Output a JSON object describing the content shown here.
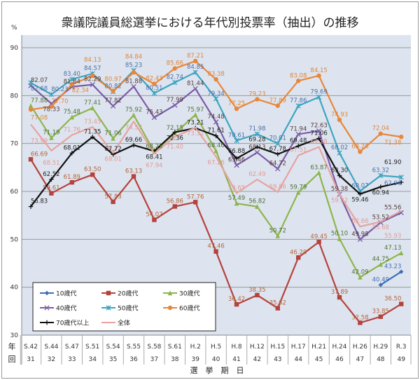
{
  "chart_data": {
    "type": "line",
    "title": "衆議院議員総選挙における年代別投票率（抽出）の推移",
    "ylabel": "%",
    "xlabel": "選　挙　期　日",
    "row_labels": [
      "年",
      "回"
    ],
    "ylim": [
      30,
      90
    ],
    "yticks": [
      30,
      40,
      50,
      60,
      70,
      80,
      90
    ],
    "grid": true,
    "legend_position": "bottom-left",
    "categories": [
      "S.42",
      "S.44",
      "S.47",
      "S.51",
      "S.54",
      "S.55",
      "S.58",
      "S.61",
      "H.2",
      "H.5",
      "H.8",
      "H.12",
      "H.15",
      "H.17",
      "H.21",
      "H.24",
      "H.26",
      "H.29",
      "R.3"
    ],
    "sessions": [
      "31",
      "32",
      "33",
      "34",
      "35",
      "36",
      "37",
      "38",
      "39",
      "40",
      "41",
      "42",
      "43",
      "44",
      "45",
      "46",
      "47",
      "48",
      "49"
    ],
    "series": [
      {
        "name": "10歳代",
        "color": "#3f6fb5",
        "label_color": "#3f6fb5",
        "marker": "diamond",
        "values": [
          null,
          null,
          null,
          null,
          null,
          null,
          null,
          null,
          null,
          null,
          null,
          null,
          null,
          null,
          null,
          null,
          null,
          40.49,
          43.23
        ]
      },
      {
        "name": "20歳代",
        "color": "#b5423c",
        "label_color": "#b5643c",
        "marker": "square",
        "values": [
          66.69,
          59.61,
          61.89,
          63.5,
          57.83,
          63.13,
          54.07,
          56.86,
          57.76,
          47.46,
          36.42,
          38.35,
          35.62,
          46.2,
          49.45,
          37.89,
          32.58,
          33.85,
          36.5
        ]
      },
      {
        "name": "30歳代",
        "color": "#8db54a",
        "label_color": "#4f6f3a",
        "marker": "triangle",
        "values": [
          77.88,
          71.19,
          75.48,
          77.41,
          71.06,
          75.92,
          68.25,
          72.15,
          75.97,
          68.46,
          57.49,
          56.82,
          50.72,
          59.79,
          63.87,
          50.1,
          42.09,
          44.75,
          47.13
        ]
      },
      {
        "name": "40歳代",
        "color": "#7b5ca6",
        "label_color": "#553a3a",
        "marker": "x",
        "values": [
          82.07,
          78.33,
          81.84,
          82.29,
          77.82,
          81.88,
          75.43,
          77.99,
          81.44,
          74.48,
          65.46,
          68.13,
          64.72,
          71.94,
          72.63,
          59.38,
          49.98,
          53.52,
          55.56
        ]
      },
      {
        "name": "50歳代",
        "color": "#3ea5c0",
        "label_color": "#4a6fa8",
        "marker": "star",
        "values": [
          82.68,
          80.23,
          83.4,
          84.57,
          80.82,
          85.23,
          80.51,
          82.74,
          84.85,
          79.34,
          70.61,
          71.98,
          70.01,
          77.86,
          79.69,
          68.02,
          60.07,
          63.32,
          62.96
        ]
      },
      {
        "name": "60歳代",
        "color": "#e8873a",
        "label_color": "#e0853a",
        "marker": "circle",
        "values": [
          77.08,
          77.7,
          82.34,
          84.13,
          80.97,
          84.84,
          82.43,
          85.66,
          87.21,
          83.38,
          77.25,
          79.23,
          77.89,
          83.08,
          84.15,
          74.93,
          68.28,
          72.04,
          71.38
        ]
      },
      {
        "name": "70歳代以上",
        "color": "#111111",
        "label_color": "#222222",
        "marker": "plus",
        "values": [
          56.83,
          62.52,
          68.01,
          71.35,
          67.72,
          69.66,
          68.41,
          72.36,
          73.21,
          71.61,
          66.88,
          69.28,
          67.78,
          69.48,
          71.06,
          63.3,
          59.46,
          60.94,
          61.9
        ]
      },
      {
        "name": "全体",
        "color": "#e6a3a0",
        "label_color": "#e39a95",
        "marker": "none",
        "values": [
          73.99,
          68.51,
          71.76,
          73.45,
          68.01,
          74.57,
          67.94,
          71.4,
          73.31,
          67.26,
          59.65,
          62.49,
          59.86,
          67.51,
          69.28,
          59.32,
          52.66,
          53.68,
          55.93
        ]
      }
    ]
  }
}
